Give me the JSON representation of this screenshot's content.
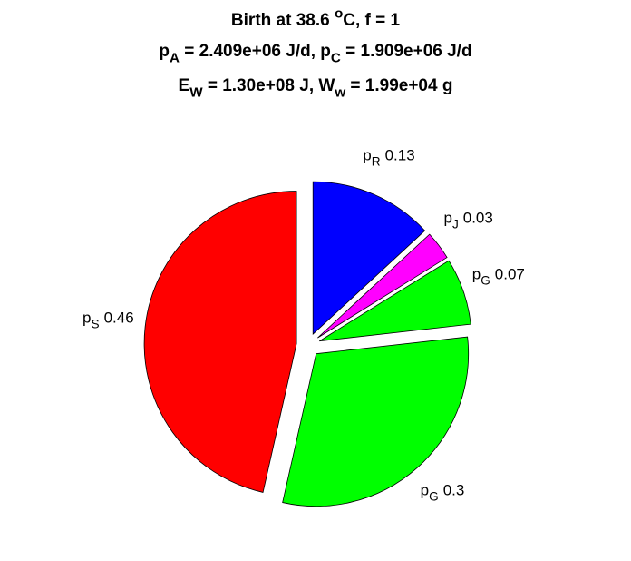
{
  "chart_data": {
    "type": "pie",
    "title_lines": [
      [
        {
          "text": "Birth at 38.6 "
        },
        {
          "text": "o",
          "baseline": "sup"
        },
        {
          "text": "C, f = 1"
        }
      ],
      [
        {
          "text": "p"
        },
        {
          "text": "A",
          "baseline": "sub"
        },
        {
          "text": " = 2.409e+06 J/d, p"
        },
        {
          "text": "C",
          "baseline": "sub"
        },
        {
          "text": " = 1.909e+06 J/d"
        }
      ],
      [
        {
          "text": "E"
        },
        {
          "text": "W",
          "baseline": "sub"
        },
        {
          "text": " = 1.30e+08 J, W"
        },
        {
          "text": "w",
          "baseline": "sub"
        },
        {
          "text": " = 1.99e+04 g"
        }
      ]
    ],
    "slices": [
      {
        "name": [
          {
            "text": "p"
          },
          {
            "text": "R",
            "baseline": "sub"
          }
        ],
        "value": 0.13,
        "color": "#0000ff"
      },
      {
        "name": [
          {
            "text": "p"
          },
          {
            "text": "J",
            "baseline": "sub"
          }
        ],
        "value": 0.03,
        "color": "#ff00ff"
      },
      {
        "name": [
          {
            "text": "p"
          },
          {
            "text": "G",
            "baseline": "sub"
          }
        ],
        "value": 0.07,
        "color": "#00ff00"
      },
      {
        "name": [
          {
            "text": "p"
          },
          {
            "text": "G",
            "baseline": "sub"
          }
        ],
        "value": 0.3,
        "color": "#00ff00"
      },
      {
        "name": [
          {
            "text": "p"
          },
          {
            "text": "S",
            "baseline": "sub"
          }
        ],
        "value": 0.46,
        "color": "#ff0000"
      }
    ],
    "explode": true
  }
}
